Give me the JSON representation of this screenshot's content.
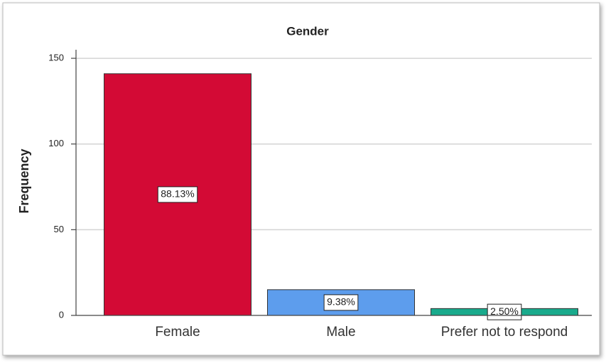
{
  "chart_data": {
    "type": "bar",
    "title": "Gender",
    "y_label": "Frequency",
    "categories": [
      "Female",
      "Male",
      "Prefer not to respond"
    ],
    "values": [
      141,
      15,
      4
    ],
    "bar_labels": [
      "88.13%",
      "9.38%",
      "2.50%"
    ],
    "colors": [
      "#d30a35",
      "#5d9ded",
      "#19aa8c"
    ],
    "ylim": [
      0,
      155
    ],
    "yticks": [
      0,
      50,
      100,
      150
    ],
    "grid": true
  }
}
